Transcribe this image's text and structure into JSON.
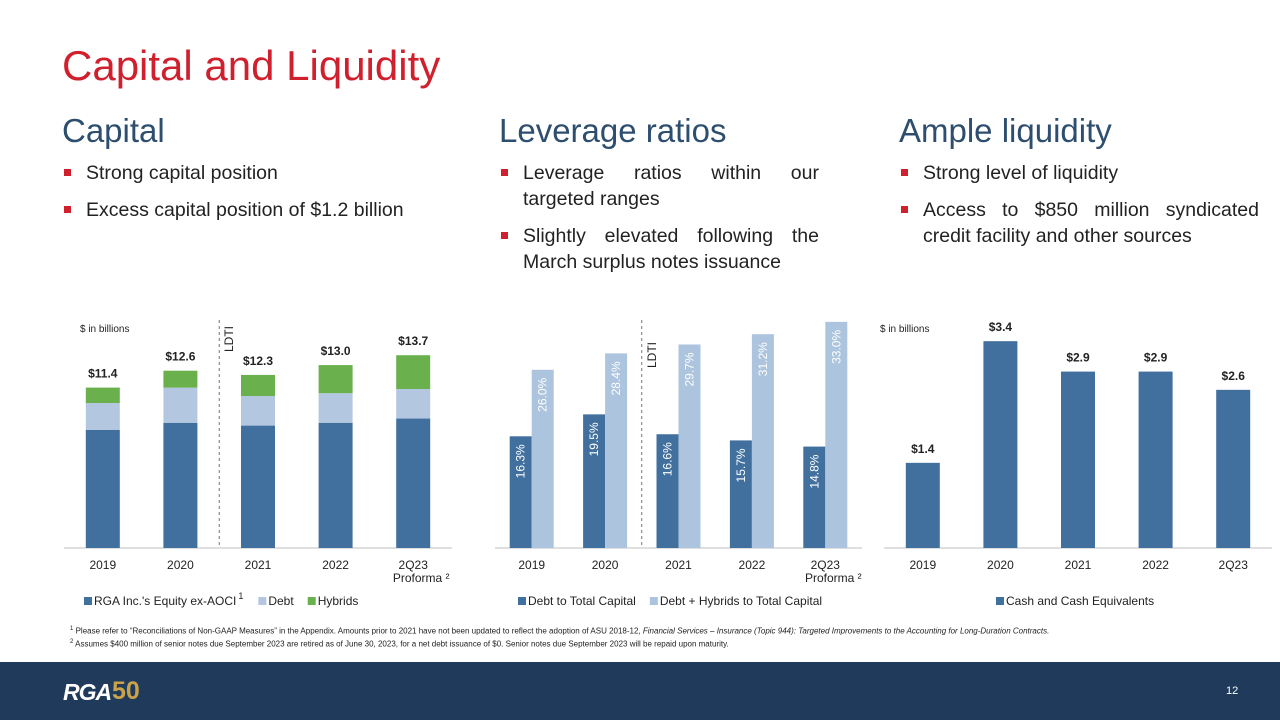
{
  "slide": {
    "title": "Capital and Liquidity",
    "sections": [
      {
        "heading": "Capital",
        "bullets": [
          "Strong capital position",
          "Excess capital position of $1.2 billion"
        ]
      },
      {
        "heading": "Leverage ratios",
        "bullets": [
          "Leverage ratios within our targeted ranges",
          "Slightly elevated following the March surplus notes issuance"
        ]
      },
      {
        "heading": "Ample liquidity",
        "bullets": [
          "Strong level of liquidity",
          "Access to $850 million syndicated credit facility and other sources"
        ]
      }
    ],
    "footnotes": [
      {
        "marker": "1",
        "text": "Please refer to “Reconciliations of Non-GAAP Measures” in the Appendix. Amounts prior to 2021 have not been updated to reflect the adoption of ASU 2018-12, ",
        "italic": "Financial Services – Insurance (Topic 944): Targeted Improvements  to the Accounting for Long-Duration  Contracts."
      },
      {
        "marker": "2",
        "text": "Assumes $400 million of senior notes due September 2023 are retired as of June 30, 2023,  for a net debt issuance of $0. Senior notes due September 2023 will be repaid upon maturity.",
        "italic": ""
      }
    ],
    "logo": "RGA",
    "logo_number": "50",
    "page_number": "12"
  },
  "chart_data": [
    {
      "type": "stacked_bar",
      "unit_note": "$ in billions",
      "annotation": "LDTI",
      "category_note": "Proforma ²",
      "legend_note": "1",
      "categories": [
        "2019",
        "2020",
        "2021",
        "2022",
        "2Q23"
      ],
      "series": [
        {
          "name": "RGA Inc.'s Equity ex-AOCI",
          "color": "#41709f",
          "values": [
            8.4,
            8.9,
            8.7,
            8.9,
            9.2
          ]
        },
        {
          "name": "Debt",
          "color": "#b4c7e0",
          "values": [
            1.9,
            2.5,
            2.1,
            2.1,
            2.1
          ]
        },
        {
          "name": "Hybrids",
          "color": "#6ab04c",
          "values": [
            1.1,
            1.2,
            1.5,
            2.0,
            2.4
          ]
        }
      ],
      "totals": [
        11.4,
        12.6,
        12.3,
        13.0,
        13.7
      ],
      "total_labels": [
        "$11.4",
        "$12.6",
        "$12.3",
        "$13.0",
        "$13.7"
      ],
      "ylim": [
        0,
        14
      ]
    },
    {
      "type": "grouped_bar",
      "annotation": "LDTI",
      "category_note": "Proforma ²",
      "categories": [
        "2019",
        "2020",
        "2021",
        "2022",
        "2Q23"
      ],
      "series": [
        {
          "name": "Debt to Total Capital",
          "color": "#41709f",
          "values": [
            16.3,
            19.5,
            16.6,
            15.7,
            14.8
          ],
          "value_labels": [
            "16.3%",
            "19.5%",
            "16.6%",
            "15.7%",
            "14.8%"
          ]
        },
        {
          "name": "Debt + Hybrids to Total Capital",
          "color": "#adc4de",
          "values": [
            26.0,
            28.4,
            29.7,
            31.2,
            33.0
          ],
          "value_labels": [
            "26.0%",
            "28.4%",
            "29.7%",
            "31.2%",
            "33.0%"
          ]
        }
      ],
      "ylim": [
        0,
        34
      ]
    },
    {
      "type": "bar",
      "unit_note": "$ in billions",
      "categories": [
        "2019",
        "2020",
        "2021",
        "2022",
        "2Q23"
      ],
      "series": [
        {
          "name": "Cash and Cash Equivalents",
          "color": "#41709f",
          "values": [
            1.4,
            3.4,
            2.9,
            2.9,
            2.6
          ],
          "value_labels": [
            "$1.4",
            "$3.4",
            "$2.9",
            "$2.9",
            "$2.6"
          ]
        }
      ],
      "ylim": [
        0,
        3.6
      ]
    }
  ]
}
